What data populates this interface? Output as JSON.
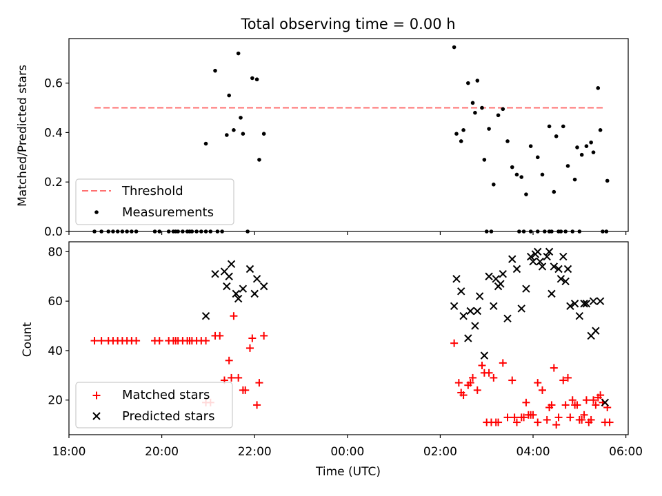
{
  "title": "Total observing time = 0.00 h",
  "colors": {
    "threshold": "#ff7070",
    "measurement": "#000000",
    "matched": "#ff0000",
    "predicted": "#000000"
  },
  "chart_data": [
    {
      "type": "scatter",
      "ylabel": "Matched/Predicted stars",
      "xlabel": "",
      "xlim": [
        18.0,
        30.05
      ],
      "ylim": [
        0.0,
        0.78
      ],
      "yticks": [
        "0.0",
        "0.2",
        "0.4",
        "0.6"
      ],
      "legend_position": "lower-left",
      "threshold": {
        "name": "Threshold",
        "value": 0.5,
        "x": [
          18.55,
          29.55
        ]
      },
      "measurements": {
        "name": "Measurements",
        "x": [
          18.55,
          18.7,
          18.85,
          18.95,
          19.05,
          19.15,
          19.25,
          19.35,
          19.45,
          19.85,
          19.95,
          20.15,
          20.25,
          20.3,
          20.35,
          20.45,
          20.55,
          20.6,
          20.65,
          20.75,
          20.85,
          20.95,
          21.05,
          21.2,
          21.3,
          20.95,
          21.15,
          21.4,
          21.45,
          21.55,
          21.65,
          21.7,
          21.75,
          21.85,
          21.95,
          22.05,
          22.1,
          22.2,
          26.3,
          26.35,
          26.45,
          26.5,
          26.6,
          26.7,
          26.75,
          26.8,
          26.9,
          26.95,
          27.0,
          27.05,
          27.15,
          27.25,
          27.35,
          27.45,
          27.55,
          27.65,
          27.75,
          27.85,
          27.95,
          28.1,
          28.2,
          28.35,
          28.45,
          28.5,
          28.65,
          28.75,
          28.9,
          28.95,
          29.05,
          29.15,
          29.25,
          29.3,
          29.4,
          29.45,
          29.6,
          27.1,
          27.7,
          27.8,
          27.95,
          28.1,
          28.25,
          28.35,
          28.4,
          28.55,
          28.6,
          28.7,
          28.85,
          29.0,
          29.5,
          29.58
        ],
        "y": [
          0,
          0,
          0,
          0,
          0,
          0,
          0,
          0,
          0,
          0,
          0,
          0,
          0,
          0,
          0,
          0,
          0,
          0,
          0,
          0,
          0,
          0,
          0,
          0,
          0,
          0.355,
          0.65,
          0.39,
          0.55,
          0.41,
          0.72,
          0.46,
          0.395,
          0,
          0.62,
          0.615,
          0.29,
          0.395,
          0.745,
          0.395,
          0.365,
          0.41,
          0.6,
          0.52,
          0.48,
          0.61,
          0.5,
          0.29,
          0.0,
          0.415,
          0.19,
          0.47,
          0.495,
          0.365,
          0.26,
          0.23,
          0.22,
          0.15,
          0.345,
          0.3,
          0.23,
          0.425,
          0.16,
          0.385,
          0.425,
          0.265,
          0.21,
          0.34,
          0.31,
          0.345,
          0.36,
          0.32,
          0.58,
          0.41,
          0.205,
          0,
          0,
          0,
          0,
          0,
          0,
          0,
          0,
          0,
          0,
          0,
          0,
          0,
          0,
          0
        ]
      }
    },
    {
      "type": "scatter",
      "ylabel": "Count",
      "xlabel": "Time (UTC)",
      "xlim": [
        18.0,
        30.05
      ],
      "ylim": [
        6,
        84
      ],
      "yticks": [
        "20",
        "40",
        "60",
        "80"
      ],
      "xticks": [
        "18:00",
        "20:00",
        "22:00",
        "00:00",
        "02:00",
        "04:00",
        "06:00"
      ],
      "legend_position": "lower-left",
      "series": [
        {
          "name": "Matched stars",
          "x": [
            18.55,
            18.7,
            18.85,
            18.95,
            19.05,
            19.15,
            19.25,
            19.35,
            19.45,
            19.85,
            19.95,
            20.15,
            20.25,
            20.3,
            20.35,
            20.45,
            20.55,
            20.6,
            20.65,
            20.75,
            20.85,
            20.95,
            20.95,
            21.05,
            21.15,
            21.25,
            21.35,
            21.45,
            21.5,
            21.55,
            21.65,
            21.75,
            21.8,
            21.9,
            21.95,
            22.05,
            22.1,
            22.2,
            26.3,
            26.4,
            26.45,
            26.5,
            26.6,
            26.65,
            26.7,
            26.8,
            26.9,
            26.95,
            27.0,
            27.05,
            27.15,
            27.25,
            27.35,
            27.45,
            27.55,
            27.65,
            27.75,
            27.85,
            27.95,
            28.1,
            28.2,
            28.35,
            28.45,
            28.5,
            28.65,
            28.75,
            28.9,
            28.95,
            29.05,
            29.15,
            29.25,
            29.3,
            29.4,
            29.45,
            29.6,
            27.1,
            27.2,
            27.6,
            27.8,
            27.9,
            28.0,
            28.1,
            28.2,
            28.3,
            28.4,
            28.55,
            28.7,
            28.8,
            28.85,
            29.0,
            29.1,
            29.2,
            29.35,
            29.5,
            29.55,
            29.65
          ],
          "y": [
            44,
            44,
            44,
            44,
            44,
            44,
            44,
            44,
            44,
            44,
            44,
            44,
            44,
            44,
            44,
            44,
            44,
            44,
            44,
            44,
            44,
            44,
            19,
            19,
            46,
            46,
            28,
            36,
            29,
            54,
            29,
            24,
            24,
            41,
            45,
            18,
            27,
            46,
            43,
            27,
            23,
            22,
            26,
            27,
            29,
            24,
            34,
            31,
            11,
            31,
            29,
            11,
            35,
            13,
            28,
            11,
            13,
            19,
            14,
            27,
            24,
            17,
            33,
            10,
            28,
            29,
            18,
            18,
            12,
            20,
            12,
            20,
            21,
            22,
            17,
            11,
            11,
            13,
            13,
            14,
            14,
            11,
            24,
            12,
            18,
            13,
            18,
            13,
            20,
            12,
            14,
            11,
            18,
            19,
            11,
            11
          ]
        },
        {
          "name": "Predicted stars",
          "x": [
            20.95,
            21.15,
            21.35,
            21.4,
            21.45,
            21.5,
            21.6,
            21.65,
            21.75,
            21.9,
            22.0,
            22.05,
            22.2,
            26.3,
            26.35,
            26.45,
            26.5,
            26.6,
            26.65,
            26.75,
            26.8,
            26.85,
            26.95,
            27.05,
            27.15,
            27.25,
            27.35,
            27.45,
            27.55,
            27.65,
            27.75,
            27.85,
            28.0,
            28.1,
            28.2,
            28.3,
            28.4,
            28.55,
            28.6,
            28.7,
            28.8,
            28.9,
            29.0,
            29.1,
            29.25,
            29.35,
            29.45,
            29.55,
            27.2,
            27.3,
            27.95,
            28.05,
            28.15,
            28.35,
            28.45,
            28.65,
            28.75,
            29.15,
            29.3
          ],
          "y": [
            54,
            71,
            72,
            66,
            70,
            75,
            63,
            61,
            65,
            73,
            63,
            69,
            66,
            58,
            69,
            64,
            54,
            45,
            56,
            50,
            56,
            62,
            38,
            70,
            58,
            66,
            71,
            53,
            77,
            73,
            57,
            65,
            76,
            80,
            74,
            78,
            63,
            73,
            69,
            68,
            58,
            59,
            54,
            59,
            46,
            48,
            60,
            19,
            69,
            67,
            78,
            79,
            76,
            80,
            74,
            78,
            73,
            59,
            60
          ]
        }
      ]
    }
  ]
}
